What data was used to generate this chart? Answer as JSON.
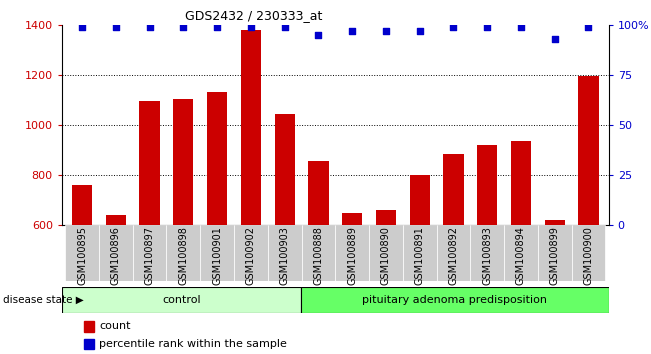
{
  "title": "GDS2432 / 230333_at",
  "categories": [
    "GSM100895",
    "GSM100896",
    "GSM100897",
    "GSM100898",
    "GSM100901",
    "GSM100902",
    "GSM100903",
    "GSM100888",
    "GSM100889",
    "GSM100890",
    "GSM100891",
    "GSM100892",
    "GSM100893",
    "GSM100894",
    "GSM100899",
    "GSM100900"
  ],
  "counts": [
    760,
    638,
    1095,
    1105,
    1130,
    1380,
    1045,
    855,
    648,
    658,
    800,
    882,
    920,
    935,
    618,
    1195
  ],
  "percentiles": [
    99,
    99,
    99,
    99,
    99,
    99,
    99,
    95,
    97,
    97,
    97,
    99,
    99,
    99,
    93,
    99
  ],
  "ylim": [
    600,
    1400
  ],
  "y2lim": [
    0,
    100
  ],
  "yticks": [
    600,
    800,
    1000,
    1200,
    1400
  ],
  "y2ticks": [
    0,
    25,
    50,
    75,
    100
  ],
  "bar_color": "#cc0000",
  "dot_color": "#0000cc",
  "bg_color": "#ffffff",
  "tick_area_color": "#cccccc",
  "n_control": 7,
  "n_disease": 9,
  "control_label": "control",
  "disease_label": "pituitary adenoma predisposition",
  "control_color": "#ccffcc",
  "disease_color": "#66ff66",
  "legend_count": "count",
  "legend_percentile": "percentile rank within the sample",
  "disease_state_label": "disease state"
}
